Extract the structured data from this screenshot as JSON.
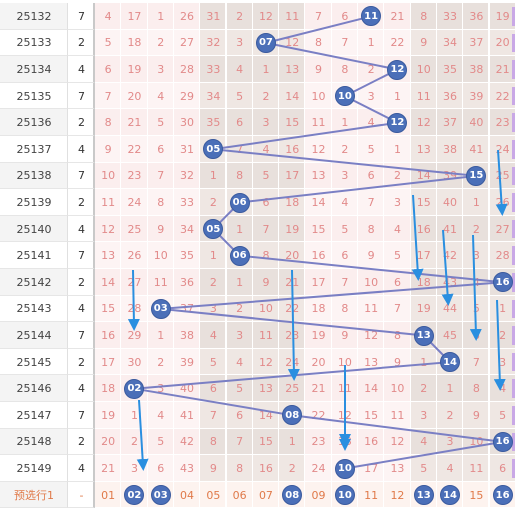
{
  "rows": [
    {
      "period": "25132",
      "sum": "7",
      "cells": [
        "4",
        "17",
        "1",
        "26",
        "31",
        "2",
        "12",
        "11",
        "7",
        "6",
        "11",
        "21",
        "8",
        "33",
        "36",
        "19"
      ],
      "ball": 11
    },
    {
      "period": "25133",
      "sum": "2",
      "cells": [
        "5",
        "18",
        "2",
        "27",
        "32",
        "3",
        "07",
        "12",
        "8",
        "7",
        "1",
        "22",
        "9",
        "34",
        "37",
        "20"
      ],
      "ball": 7
    },
    {
      "period": "25134",
      "sum": "4",
      "cells": [
        "6",
        "19",
        "3",
        "28",
        "33",
        "4",
        "1",
        "13",
        "9",
        "8",
        "2",
        "12",
        "10",
        "35",
        "38",
        "21"
      ],
      "ball": 12
    },
    {
      "period": "25135",
      "sum": "7",
      "cells": [
        "7",
        "20",
        "4",
        "29",
        "34",
        "5",
        "2",
        "14",
        "10",
        "10",
        "3",
        "1",
        "11",
        "36",
        "39",
        "22"
      ],
      "ball": 10
    },
    {
      "period": "25136",
      "sum": "2",
      "cells": [
        "8",
        "21",
        "5",
        "30",
        "35",
        "6",
        "3",
        "15",
        "11",
        "1",
        "4",
        "12",
        "12",
        "37",
        "40",
        "23"
      ],
      "ball": 12
    },
    {
      "period": "25137",
      "sum": "4",
      "cells": [
        "9",
        "22",
        "6",
        "31",
        "05",
        "7",
        "4",
        "16",
        "12",
        "2",
        "5",
        "1",
        "13",
        "38",
        "41",
        "24"
      ],
      "ball": 5
    },
    {
      "period": "25138",
      "sum": "7",
      "cells": [
        "10",
        "23",
        "7",
        "32",
        "1",
        "8",
        "5",
        "17",
        "13",
        "3",
        "6",
        "2",
        "14",
        "39",
        "15",
        "25"
      ],
      "ball": 15
    },
    {
      "period": "25139",
      "sum": "2",
      "cells": [
        "11",
        "24",
        "8",
        "33",
        "2",
        "06",
        "6",
        "18",
        "14",
        "4",
        "7",
        "3",
        "15",
        "40",
        "1",
        "26"
      ],
      "ball": 6
    },
    {
      "period": "25140",
      "sum": "4",
      "cells": [
        "12",
        "25",
        "9",
        "34",
        "05",
        "1",
        "7",
        "19",
        "15",
        "5",
        "8",
        "4",
        "16",
        "41",
        "2",
        "27"
      ],
      "ball": 5
    },
    {
      "period": "25141",
      "sum": "7",
      "cells": [
        "13",
        "26",
        "10",
        "35",
        "1",
        "06",
        "8",
        "20",
        "16",
        "6",
        "9",
        "5",
        "17",
        "42",
        "3",
        "28"
      ],
      "ball": 6
    },
    {
      "period": "25142",
      "sum": "2",
      "cells": [
        "14",
        "27",
        "11",
        "36",
        "2",
        "1",
        "9",
        "21",
        "17",
        "7",
        "10",
        "6",
        "18",
        "43",
        "4",
        "16"
      ],
      "ball": 16
    },
    {
      "period": "25143",
      "sum": "4",
      "cells": [
        "15",
        "28",
        "03",
        "37",
        "3",
        "2",
        "10",
        "22",
        "18",
        "8",
        "11",
        "7",
        "19",
        "44",
        "5",
        "1"
      ],
      "ball": 3
    },
    {
      "period": "25144",
      "sum": "7",
      "cells": [
        "16",
        "29",
        "1",
        "38",
        "4",
        "3",
        "11",
        "23",
        "19",
        "9",
        "12",
        "8",
        "13",
        "45",
        "6",
        "2"
      ],
      "ball": 13
    },
    {
      "period": "25145",
      "sum": "2",
      "cells": [
        "17",
        "30",
        "2",
        "39",
        "5",
        "4",
        "12",
        "24",
        "20",
        "10",
        "13",
        "9",
        "1",
        "14",
        "7",
        "3"
      ],
      "ball": 14
    },
    {
      "period": "25146",
      "sum": "4",
      "cells": [
        "18",
        "02",
        "3",
        "40",
        "6",
        "5",
        "13",
        "25",
        "21",
        "11",
        "14",
        "10",
        "2",
        "1",
        "8",
        "4"
      ],
      "ball": 2
    },
    {
      "period": "25147",
      "sum": "7",
      "cells": [
        "19",
        "1",
        "4",
        "41",
        "7",
        "6",
        "14",
        "08",
        "22",
        "12",
        "15",
        "11",
        "3",
        "2",
        "9",
        "5"
      ],
      "ball": 8
    },
    {
      "period": "25148",
      "sum": "2",
      "cells": [
        "20",
        "2",
        "5",
        "42",
        "8",
        "7",
        "15",
        "1",
        "23",
        "13",
        "16",
        "12",
        "4",
        "3",
        "10",
        "16"
      ],
      "ball": 16
    },
    {
      "period": "25149",
      "sum": "4",
      "cells": [
        "21",
        "3",
        "6",
        "43",
        "9",
        "8",
        "16",
        "2",
        "24",
        "10",
        "17",
        "13",
        "5",
        "4",
        "11",
        "6"
      ],
      "ball": 10
    }
  ],
  "preselect": {
    "label": "预选行1",
    "dash": "-",
    "cells": [
      "01",
      "02",
      "03",
      "04",
      "05",
      "06",
      "07",
      "08",
      "09",
      "10",
      "11",
      "12",
      "13",
      "14",
      "15",
      "16"
    ],
    "selected": [
      "02",
      "03",
      "08",
      "10",
      "13",
      "14",
      "16"
    ]
  },
  "colors": {
    "ball": "#4b6fb8",
    "line": "#7a7fc4",
    "arrow": "#2a8fe0",
    "num": "#e28a8a",
    "pre": "#e07a4a"
  }
}
